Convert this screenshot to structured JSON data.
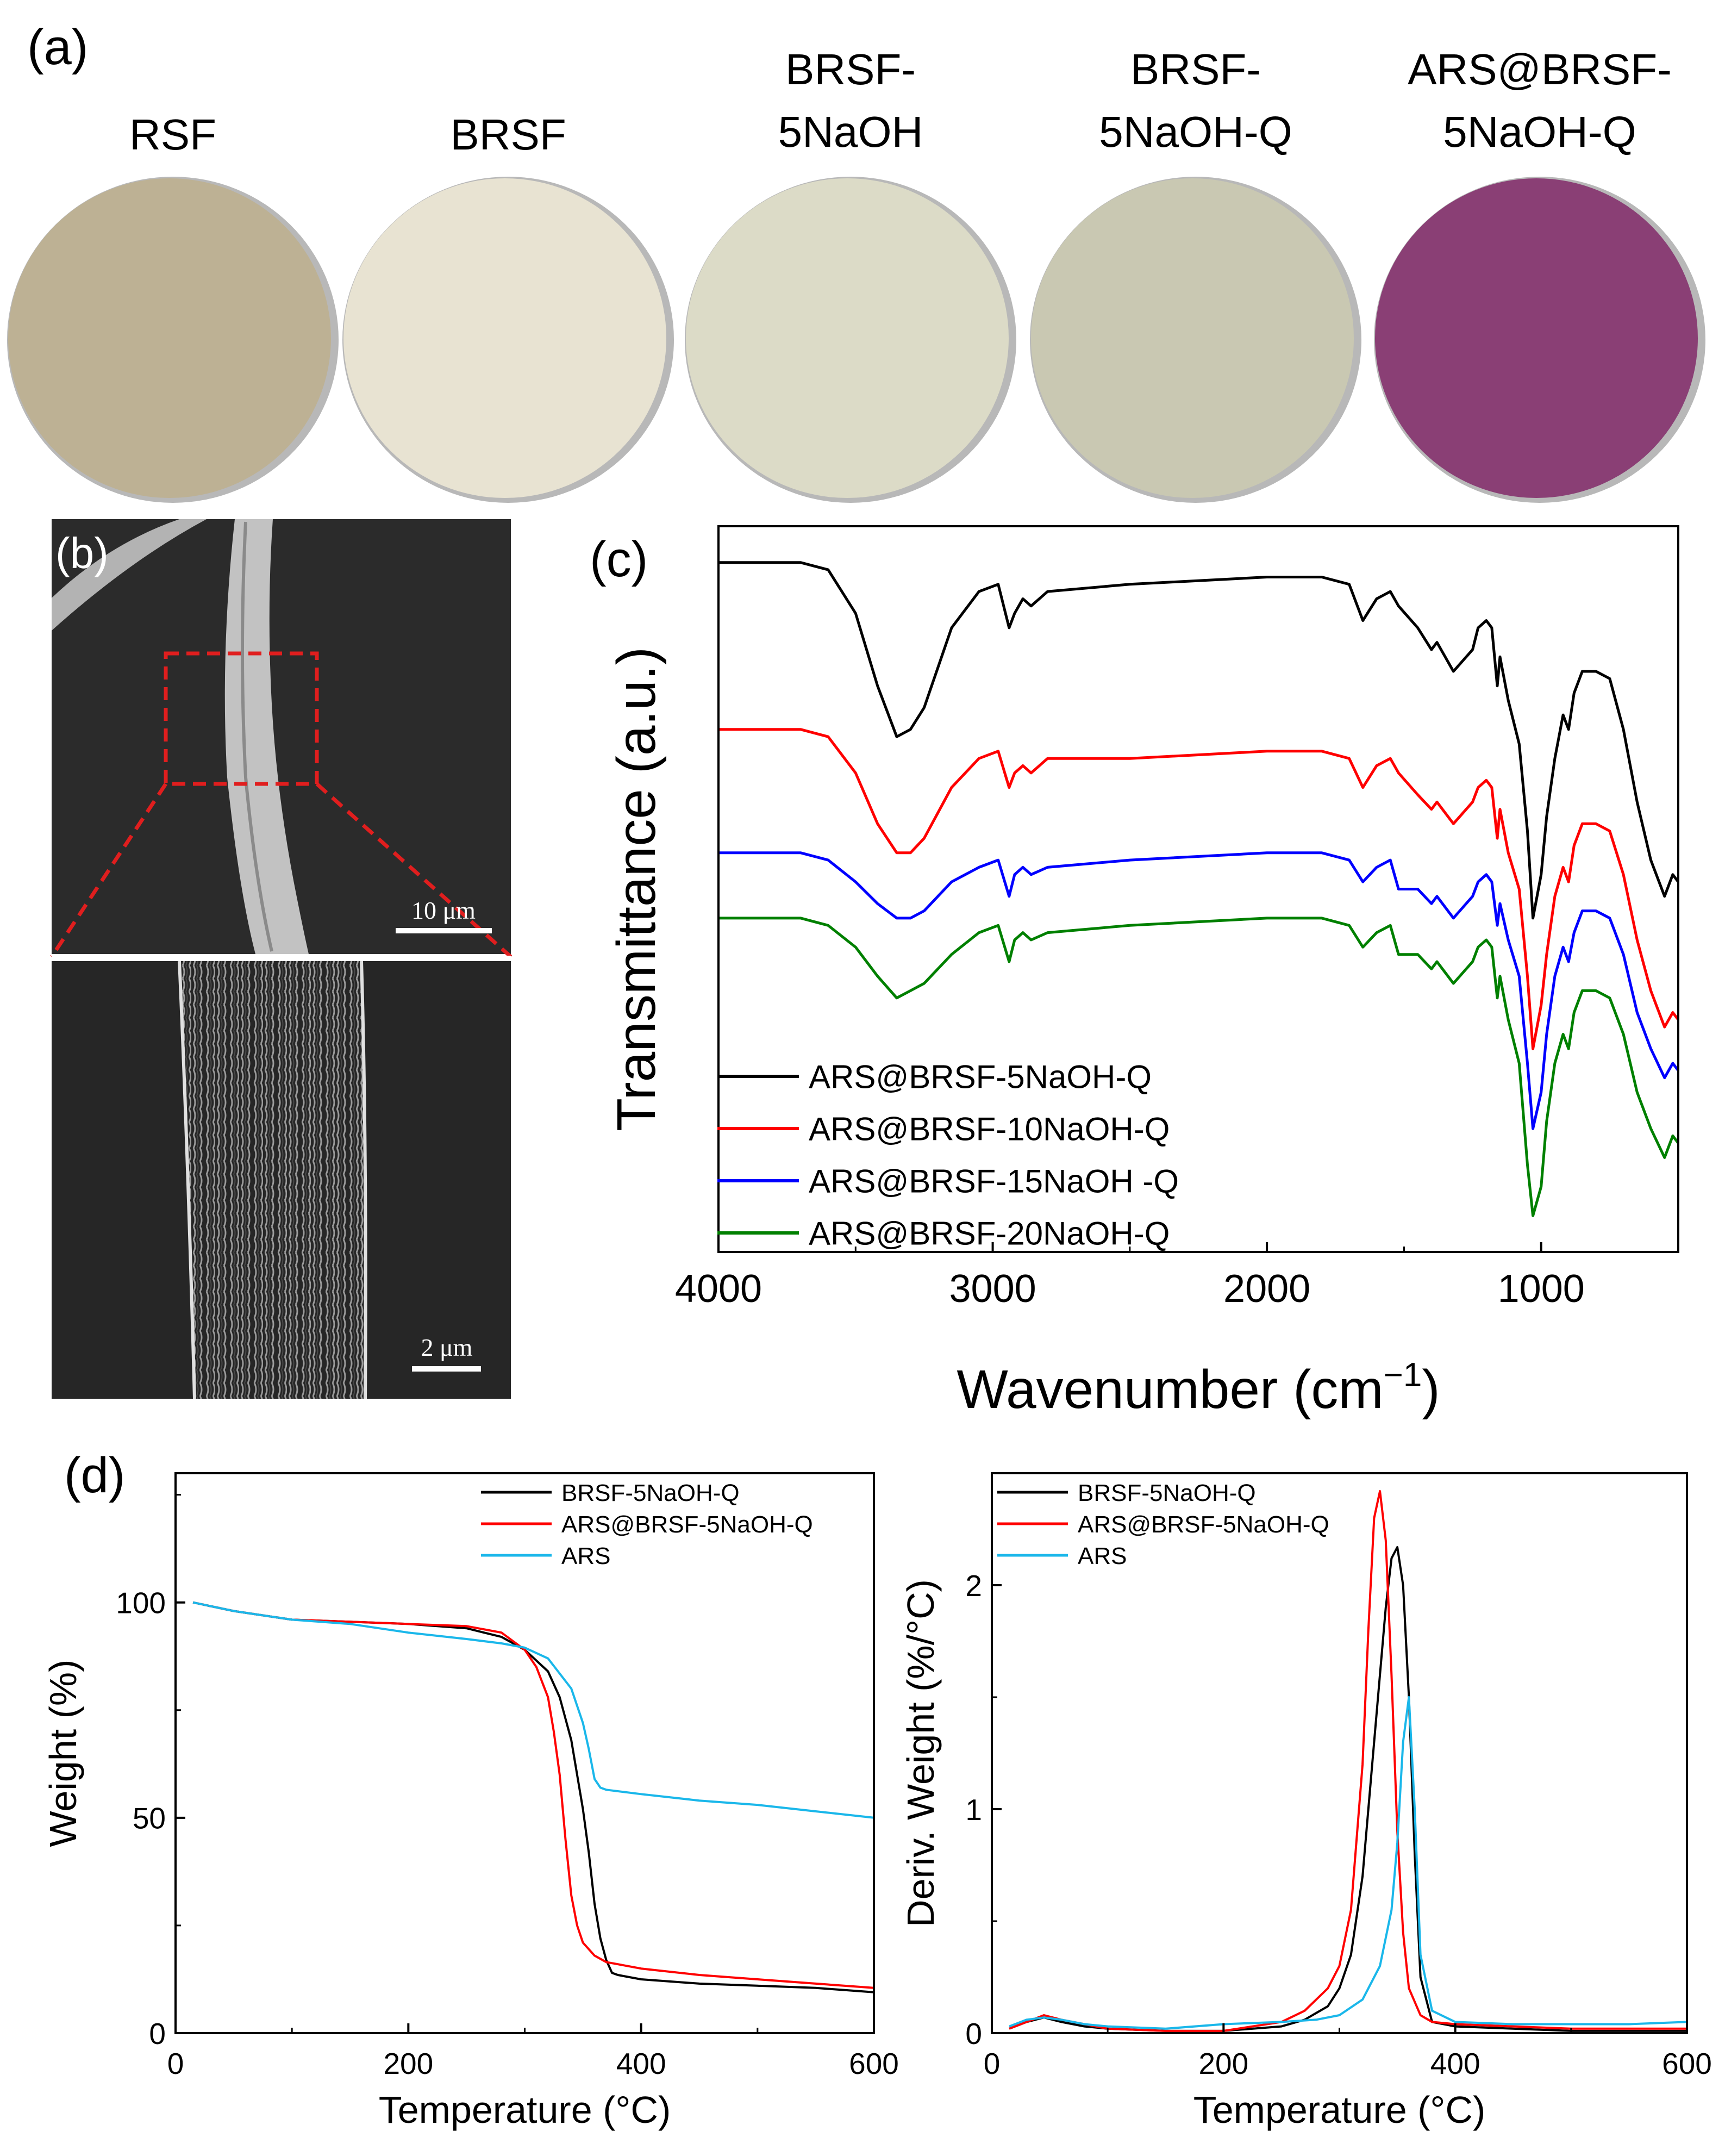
{
  "panel_labels": [
    "(a)",
    "(b)",
    "(c)",
    "(d)"
  ],
  "photos": {
    "samples": [
      {
        "label_lines": [
          "RSF"
        ],
        "color": "#bdb194"
      },
      {
        "label_lines": [
          "BRSF"
        ],
        "color": "#e8e3d2"
      },
      {
        "label_lines": [
          "BRSF-",
          "5NaOH"
        ],
        "color": "#dcdbc7"
      },
      {
        "label_lines": [
          "BRSF-",
          "5NaOH-Q"
        ],
        "color": "#c9c8b2"
      },
      {
        "label_lines": [
          "ARS@BRSF-",
          "5NaOH-Q"
        ],
        "color": "#8a3f75"
      }
    ]
  },
  "sem": {
    "scale_top": "10 μm",
    "scale_bottom": "2 μm"
  },
  "chart_data": [
    {
      "id": "ftir",
      "type": "line",
      "xlabel": "Wavenumber (cm",
      "xlabel_sup": "−1",
      "xlabel_close": ")",
      "ylabel": "Transmittance (a.u.)",
      "xlim": [
        4000,
        500
      ],
      "ylim": [
        0,
        100
      ],
      "xticks": [
        4000,
        3000,
        2000,
        1000
      ],
      "legend_position": "bottom-left",
      "series": [
        {
          "name": "ARS@BRSF-5NaOH-Q",
          "color": "#000000",
          "x": [
            4000,
            3700,
            3600,
            3500,
            3420,
            3350,
            3300,
            3250,
            3150,
            3050,
            2980,
            2940,
            2920,
            2890,
            2860,
            2800,
            2500,
            2000,
            1800,
            1700,
            1650,
            1600,
            1550,
            1520,
            1450,
            1400,
            1380,
            1320,
            1250,
            1230,
            1200,
            1180,
            1160,
            1150,
            1120,
            1080,
            1050,
            1030,
            1000,
            980,
            950,
            920,
            900,
            880,
            850,
            800,
            750,
            700,
            650,
            600,
            550,
            520,
            500
          ],
          "y": [
            95,
            95,
            94,
            88,
            78,
            71,
            72,
            75,
            86,
            91,
            92,
            86,
            88,
            90,
            89,
            91,
            92,
            93,
            93,
            92,
            87,
            90,
            91,
            89,
            86,
            83,
            84,
            80,
            83,
            86,
            87,
            86,
            78,
            82,
            76,
            70,
            58,
            46,
            52,
            60,
            68,
            74,
            72,
            77,
            80,
            80,
            79,
            72,
            62,
            54,
            49,
            52,
            51
          ]
        },
        {
          "name": "ARS@BRSF-10NaOH-Q",
          "color": "#ff0000",
          "x": [
            4000,
            3700,
            3600,
            3500,
            3420,
            3350,
            3300,
            3250,
            3150,
            3050,
            2980,
            2940,
            2920,
            2890,
            2860,
            2800,
            2500,
            2000,
            1800,
            1700,
            1650,
            1600,
            1550,
            1520,
            1450,
            1400,
            1380,
            1320,
            1250,
            1230,
            1200,
            1180,
            1160,
            1150,
            1120,
            1080,
            1050,
            1030,
            1000,
            980,
            950,
            920,
            900,
            880,
            850,
            800,
            750,
            700,
            650,
            600,
            550,
            520,
            500
          ],
          "y": [
            72,
            72,
            71,
            66,
            59,
            55,
            55,
            57,
            64,
            68,
            69,
            64,
            66,
            67,
            66,
            68,
            68,
            69,
            69,
            68,
            64,
            67,
            68,
            66,
            63,
            61,
            62,
            59,
            62,
            64,
            65,
            64,
            57,
            61,
            55,
            50,
            38,
            28,
            34,
            41,
            49,
            53,
            51,
            56,
            59,
            59,
            58,
            52,
            43,
            36,
            31,
            33,
            32
          ]
        },
        {
          "name": "ARS@BRSF-15NaOH -Q",
          "color": "#0000ff",
          "x": [
            4000,
            3700,
            3600,
            3500,
            3420,
            3350,
            3300,
            3250,
            3150,
            3050,
            2980,
            2940,
            2920,
            2890,
            2860,
            2800,
            2500,
            2000,
            1800,
            1700,
            1650,
            1600,
            1550,
            1520,
            1450,
            1400,
            1380,
            1320,
            1250,
            1230,
            1200,
            1180,
            1160,
            1150,
            1120,
            1080,
            1050,
            1030,
            1000,
            980,
            950,
            920,
            900,
            880,
            850,
            800,
            750,
            700,
            650,
            600,
            550,
            520,
            500
          ],
          "y": [
            55,
            55,
            54,
            51,
            48,
            46,
            46,
            47,
            51,
            53,
            54,
            49,
            52,
            53,
            52,
            53,
            54,
            55,
            55,
            54,
            51,
            53,
            54,
            50,
            50,
            48,
            49,
            46,
            49,
            51,
            52,
            51,
            45,
            48,
            43,
            38,
            26,
            17,
            22,
            30,
            38,
            42,
            40,
            44,
            47,
            47,
            46,
            41,
            33,
            28,
            24,
            26,
            25
          ]
        },
        {
          "name": "ARS@BRSF-20NaOH-Q",
          "color": "#008000",
          "x": [
            4000,
            3700,
            3600,
            3500,
            3420,
            3350,
            3300,
            3250,
            3150,
            3050,
            2980,
            2940,
            2920,
            2890,
            2860,
            2800,
            2500,
            2000,
            1800,
            1700,
            1650,
            1600,
            1550,
            1520,
            1450,
            1400,
            1380,
            1320,
            1250,
            1230,
            1200,
            1180,
            1160,
            1150,
            1120,
            1080,
            1050,
            1030,
            1000,
            980,
            950,
            920,
            900,
            880,
            850,
            800,
            750,
            700,
            650,
            600,
            550,
            520,
            500
          ],
          "y": [
            46,
            46,
            45,
            42,
            38,
            35,
            36,
            37,
            41,
            44,
            45,
            40,
            43,
            44,
            43,
            44,
            45,
            46,
            46,
            45,
            42,
            44,
            45,
            41,
            41,
            39,
            40,
            37,
            40,
            42,
            43,
            42,
            35,
            38,
            32,
            26,
            12,
            5,
            9,
            18,
            26,
            30,
            28,
            33,
            36,
            36,
            35,
            30,
            22,
            17,
            13,
            16,
            15
          ]
        }
      ]
    },
    {
      "id": "tga",
      "type": "line",
      "xlabel": "Temperature (°C)",
      "ylabel": "Weight (%)",
      "xlim": [
        0,
        600
      ],
      "ylim": [
        0,
        130
      ],
      "xticks": [
        0,
        200,
        400,
        600
      ],
      "yticks": [
        0,
        50,
        100
      ],
      "legend_position": "top-right",
      "series": [
        {
          "name": "BRSF-5NaOH-Q",
          "color": "#000000",
          "x": [
            15,
            50,
            100,
            150,
            200,
            250,
            280,
            300,
            320,
            330,
            340,
            350,
            355,
            360,
            365,
            370,
            375,
            380,
            400,
            450,
            500,
            550,
            600
          ],
          "y": [
            100,
            98,
            96,
            95.5,
            95,
            94,
            92,
            89,
            84,
            78,
            68,
            52,
            42,
            30,
            22,
            17,
            14,
            13.5,
            12.5,
            11.5,
            11,
            10.5,
            9.5
          ]
        },
        {
          "name": "ARS@BRSF-5NaOH-Q",
          "color": "#ff0000",
          "x": [
            15,
            50,
            100,
            150,
            200,
            250,
            280,
            300,
            310,
            320,
            325,
            330,
            335,
            340,
            345,
            350,
            360,
            370,
            380,
            400,
            450,
            500,
            550,
            600
          ],
          "y": [
            100,
            98,
            96,
            95.5,
            95,
            94.5,
            93,
            89,
            85,
            78,
            70,
            60,
            45,
            32,
            25,
            21,
            18,
            16.5,
            16,
            15,
            13.5,
            12.5,
            11.5,
            10.5
          ]
        },
        {
          "name": "ARS",
          "color": "#1ab7ea",
          "x": [
            15,
            50,
            100,
            150,
            200,
            250,
            280,
            300,
            320,
            340,
            350,
            355,
            360,
            365,
            370,
            400,
            450,
            500,
            550,
            600
          ],
          "y": [
            100,
            98,
            96,
            95,
            93,
            91.5,
            90.5,
            89.5,
            87,
            80,
            72,
            66,
            59,
            57,
            56.5,
            55.5,
            54,
            53,
            51.5,
            50
          ]
        }
      ]
    },
    {
      "id": "dtg",
      "type": "line",
      "xlabel": "Temperature (°C)",
      "ylabel": "Deriv. Weight (%/°C)",
      "xlim": [
        0,
        600
      ],
      "ylim": [
        0,
        2.5
      ],
      "xticks": [
        0,
        200,
        400,
        600
      ],
      "yticks": [
        0,
        1,
        2
      ],
      "legend_position": "top-left",
      "series": [
        {
          "name": "BRSF-5NaOH-Q",
          "color": "#000000",
          "x": [
            15,
            30,
            45,
            60,
            80,
            100,
            150,
            200,
            250,
            270,
            290,
            300,
            310,
            320,
            330,
            340,
            345,
            350,
            355,
            360,
            365,
            370,
            380,
            400,
            450,
            500,
            550,
            600
          ],
          "y": [
            0.02,
            0.05,
            0.07,
            0.05,
            0.03,
            0.02,
            0.01,
            0.01,
            0.03,
            0.06,
            0.12,
            0.2,
            0.35,
            0.7,
            1.3,
            1.9,
            2.12,
            2.17,
            2.0,
            1.5,
            0.8,
            0.25,
            0.05,
            0.03,
            0.02,
            0.01,
            0.01,
            0.01
          ]
        },
        {
          "name": "ARS@BRSF-5NaOH-Q",
          "color": "#ff0000",
          "x": [
            15,
            30,
            45,
            60,
            80,
            100,
            150,
            200,
            250,
            270,
            290,
            300,
            310,
            320,
            325,
            330,
            335,
            340,
            345,
            350,
            355,
            360,
            370,
            380,
            400,
            450,
            500,
            550,
            600
          ],
          "y": [
            0.02,
            0.05,
            0.08,
            0.06,
            0.04,
            0.02,
            0.01,
            0.01,
            0.05,
            0.1,
            0.2,
            0.3,
            0.55,
            1.2,
            1.8,
            2.3,
            2.42,
            2.2,
            1.6,
            0.9,
            0.45,
            0.2,
            0.08,
            0.05,
            0.04,
            0.03,
            0.02,
            0.02,
            0.02
          ]
        },
        {
          "name": "ARS",
          "color": "#1ab7ea",
          "x": [
            15,
            30,
            45,
            60,
            80,
            100,
            150,
            200,
            250,
            280,
            300,
            320,
            335,
            345,
            350,
            355,
            360,
            365,
            370,
            380,
            400,
            450,
            500,
            550,
            600
          ],
          "y": [
            0.03,
            0.06,
            0.07,
            0.06,
            0.04,
            0.03,
            0.02,
            0.04,
            0.05,
            0.06,
            0.08,
            0.15,
            0.3,
            0.55,
            0.85,
            1.3,
            1.5,
            1.0,
            0.35,
            0.1,
            0.05,
            0.04,
            0.04,
            0.04,
            0.05
          ]
        }
      ]
    }
  ]
}
